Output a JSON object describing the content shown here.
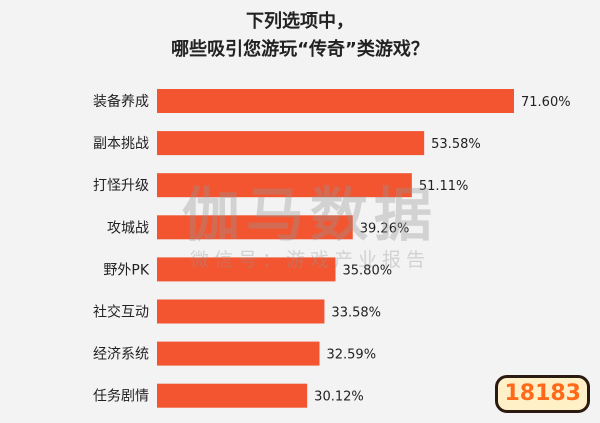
{
  "chart_data": {
    "type": "bar",
    "orientation": "horizontal",
    "title_lines": [
      "下列选项中，",
      "哪些吸引您游玩“传奇”类游戏？"
    ],
    "categories": [
      "装备养成",
      "副本挑战",
      "打怪升级",
      "攻城战",
      "野外PK",
      "社交互动",
      "经济系统",
      "任务剧情"
    ],
    "values": [
      71.6,
      53.58,
      51.11,
      39.26,
      35.8,
      33.58,
      32.59,
      30.12
    ],
    "value_labels": [
      "71.60%",
      "53.58%",
      "51.11%",
      "39.26%",
      "35.80%",
      "33.58%",
      "32.59%",
      "30.12%"
    ],
    "xlim": [
      0,
      71.6
    ],
    "bar_color": "#f25530",
    "grid": false,
    "legend": "none"
  },
  "watermark": {
    "main": "伽马数据",
    "sub": "微信号：游戏产业报告"
  },
  "logo": {
    "text": "18183"
  }
}
